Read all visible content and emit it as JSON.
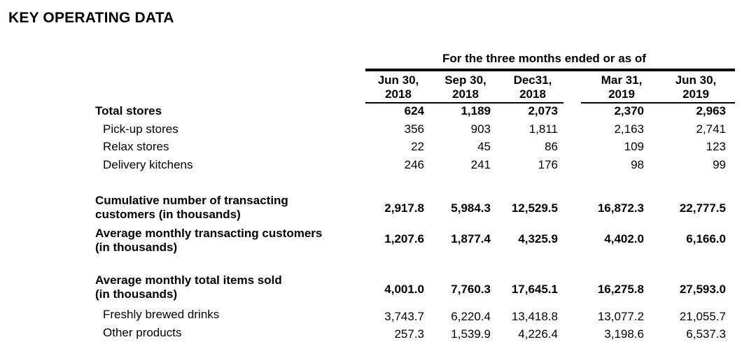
{
  "title": "KEY OPERATING DATA",
  "period_header": "For the three months ended or as of",
  "columns": [
    {
      "line1": "Jun 30,",
      "line2": "2018"
    },
    {
      "line1": "Sep 30,",
      "line2": "2018"
    },
    {
      "line1": "Dec31,",
      "line2": "2018"
    },
    {
      "line1": "Mar 31,",
      "line2": "2019"
    },
    {
      "line1": "Jun 30,",
      "line2": "2019"
    }
  ],
  "rows": [
    {
      "label": "Total stores",
      "values": [
        "624",
        "1,189",
        "2,073",
        "2,370",
        "2,963"
      ]
    },
    {
      "label": "Pick-up stores",
      "values": [
        "356",
        "903",
        "1,811",
        "2,163",
        "2,741"
      ]
    },
    {
      "label": "Relax stores",
      "values": [
        "22",
        "45",
        "86",
        "109",
        "123"
      ]
    },
    {
      "label": "Delivery kitchens",
      "values": [
        "246",
        "241",
        "176",
        "98",
        "99"
      ]
    },
    {
      "label_line1": "Cumulative number of transacting",
      "label_line2": "customers (in thousands)",
      "values": [
        "2,917.8",
        "5,984.3",
        "12,529.5",
        "16,872.3",
        "22,777.5"
      ]
    },
    {
      "label_line1": "Average monthly transacting customers",
      "label_line2": "(in thousands)",
      "values": [
        "1,207.6",
        "1,877.4",
        "4,325.9",
        "4,402.0",
        "6,166.0"
      ]
    },
    {
      "label_line1": "Average monthly total items sold",
      "label_line2": "(in thousands)",
      "values": [
        "4,001.0",
        "7,760.3",
        "17,645.1",
        "16,275.8",
        "27,593.0"
      ]
    },
    {
      "label": "Freshly brewed drinks",
      "values": [
        "3,743.7",
        "6,220.4",
        "13,418.8",
        "13,077.2",
        "21,055.7"
      ]
    },
    {
      "label": "Other products",
      "values": [
        "257.3",
        "1,539.9",
        "4,226.4",
        "3,198.6",
        "6,537.3"
      ]
    }
  ]
}
